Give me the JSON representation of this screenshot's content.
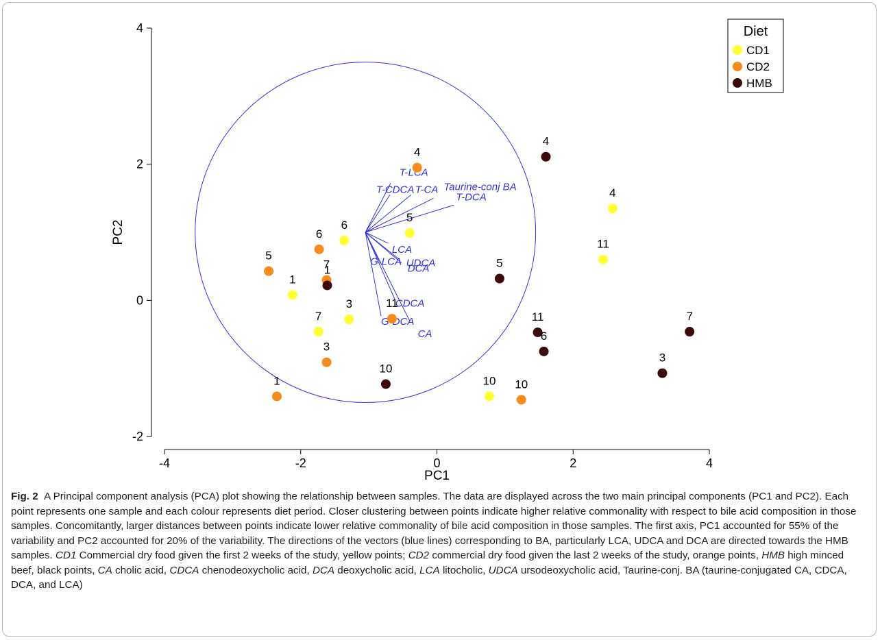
{
  "chart_data": {
    "type": "scatter",
    "xlabel": "PC1",
    "ylabel": "PC2",
    "xlim": [
      -4,
      4
    ],
    "ylim": [
      -2,
      4
    ],
    "xticks": [
      -4,
      -2,
      0,
      2,
      4
    ],
    "yticks": [
      -2,
      0,
      2,
      4
    ],
    "xticklabels": [
      "-4",
      "-2",
      "0",
      "2",
      "4"
    ],
    "yticklabels": [
      "-2",
      "0",
      "2",
      "4"
    ],
    "grid": false,
    "legend": {
      "title": "Diet",
      "placement": "top-right"
    },
    "series": [
      {
        "name": "CD1",
        "color": "#ffff33",
        "points": [
          {
            "x": 2.58,
            "y": 1.35,
            "label": "4"
          },
          {
            "x": 2.44,
            "y": 0.6,
            "label": "11"
          },
          {
            "x": -0.4,
            "y": 0.99,
            "label": "5"
          },
          {
            "x": -1.36,
            "y": 0.88,
            "label": "6"
          },
          {
            "x": -2.12,
            "y": 0.08,
            "label": "1"
          },
          {
            "x": -1.29,
            "y": -0.28,
            "label": "3"
          },
          {
            "x": -1.74,
            "y": -0.46,
            "label": "7"
          },
          {
            "x": 0.77,
            "y": -1.41,
            "label": "10"
          }
        ]
      },
      {
        "name": "CD2",
        "color": "#f78a1d",
        "points": [
          {
            "x": -0.29,
            "y": 1.95,
            "label": "4"
          },
          {
            "x": -1.73,
            "y": 0.75,
            "label": "6"
          },
          {
            "x": -2.47,
            "y": 0.43,
            "label": "5"
          },
          {
            "x": -1.62,
            "y": 0.3,
            "label": "7"
          },
          {
            "x": -0.66,
            "y": -0.27,
            "label": "11"
          },
          {
            "x": -1.62,
            "y": -0.91,
            "label": "3"
          },
          {
            "x": -2.35,
            "y": -1.41,
            "label": "1"
          },
          {
            "x": 1.24,
            "y": -1.46,
            "label": "10"
          }
        ]
      },
      {
        "name": "HMB",
        "color": "#3d0a0a",
        "points": [
          {
            "x": 1.6,
            "y": 2.11,
            "label": "4"
          },
          {
            "x": 0.92,
            "y": 0.32,
            "label": "5"
          },
          {
            "x": -1.61,
            "y": 0.22,
            "label": "1"
          },
          {
            "x": 1.48,
            "y": -0.47,
            "label": "11"
          },
          {
            "x": 1.57,
            "y": -0.75,
            "label": "6"
          },
          {
            "x": 3.71,
            "y": -0.46,
            "label": "7"
          },
          {
            "x": 3.31,
            "y": -1.07,
            "label": "3"
          },
          {
            "x": -0.75,
            "y": -1.23,
            "label": "10"
          }
        ]
      }
    ],
    "correlation_circle": {
      "cx": -1.05,
      "cy": 1.0,
      "r": 2.5,
      "color": "#3333dd"
    },
    "vectors": {
      "origin": {
        "x": -1.05,
        "y": 1.0
      },
      "color": "#3333dd",
      "items": [
        {
          "label": "T-LCA",
          "x": -0.68,
          "y": 1.72,
          "lx": -0.34,
          "ly": 1.83,
          "anchor": "middle"
        },
        {
          "label": "T-CDCA",
          "x": -0.69,
          "y": 1.55,
          "lx": -0.89,
          "ly": 1.58,
          "anchor": "start"
        },
        {
          "label": "T-CA",
          "x": -0.38,
          "y": 1.55,
          "lx": -0.32,
          "ly": 1.58,
          "anchor": "start"
        },
        {
          "label": "Taurine-conj BA",
          "x": -0.05,
          "y": 1.5,
          "lx": 0.1,
          "ly": 1.62,
          "anchor": "start"
        },
        {
          "label": "T-DCA",
          "x": 0.25,
          "y": 1.4,
          "lx": 0.28,
          "ly": 1.47,
          "anchor": "start"
        },
        {
          "label": "LCA",
          "x": -0.72,
          "y": 0.84,
          "lx": -0.66,
          "ly": 0.7,
          "anchor": "start"
        },
        {
          "label": "UDCA",
          "x": -0.55,
          "y": 0.6,
          "lx": -0.45,
          "ly": 0.5,
          "anchor": "start"
        },
        {
          "label": "DCA",
          "x": -0.52,
          "y": 0.55,
          "lx": -0.43,
          "ly": 0.42,
          "anchor": "start"
        },
        {
          "label": "G-LCA",
          "x": -0.85,
          "y": 0.58,
          "lx": -0.98,
          "ly": 0.52,
          "anchor": "start"
        },
        {
          "label": "CDCA",
          "x": -0.62,
          "y": 0.02,
          "lx": -0.61,
          "ly": -0.09,
          "anchor": "start"
        },
        {
          "label": "G-DCA",
          "x": -0.82,
          "y": -0.23,
          "lx": -0.82,
          "ly": -0.36,
          "anchor": "start"
        },
        {
          "label": "CA",
          "x": -0.4,
          "y": -0.3,
          "lx": -0.28,
          "ly": -0.54,
          "anchor": "start"
        }
      ]
    }
  },
  "caption": {
    "fig_label": "Fig. 2",
    "text_1": "A Principal component analysis (PCA) plot showing the relationship between samples. The data are displayed across the two main principal components (PC1 and PC2). Each point represents one sample and each colour represents diet period. Closer clustering between points indicate higher relative commonality with respect to bile acid composition in those samples. Concomitantly, larger distances between points indicate lower relative commonality of bile acid composition in those samples. The first axis, PC1 accounted for 55% of the variability and PC2 accounted for 20% of the variability. The directions of the vectors (blue lines) corresponding to BA, particularly LCA, UDCA and DCA are directed towards the HMB samples.",
    "abbr_1": "CD1",
    "def_1": "Commercial dry food given the first 2 weeks of the study, yellow points;",
    "abbr_2": "CD2",
    "def_2": "commercial dry food given the last 2 weeks of the study, orange points,",
    "abbr_3": "HMB",
    "def_3": "high minced beef, black points,",
    "abbr_4": "CA",
    "def_4": "cholic acid,",
    "abbr_5": "CDCA",
    "def_5": "chenodeoxycholic acid,",
    "abbr_6": "DCA",
    "def_6": "deoxycholic acid,",
    "abbr_7": "LCA",
    "def_7": "litocholic,",
    "abbr_8": "UDCA",
    "def_8": "ursodeoxycholic acid, Taurine-conj. BA (taurine-conjugated CA, CDCA, DCA, and LCA)"
  }
}
